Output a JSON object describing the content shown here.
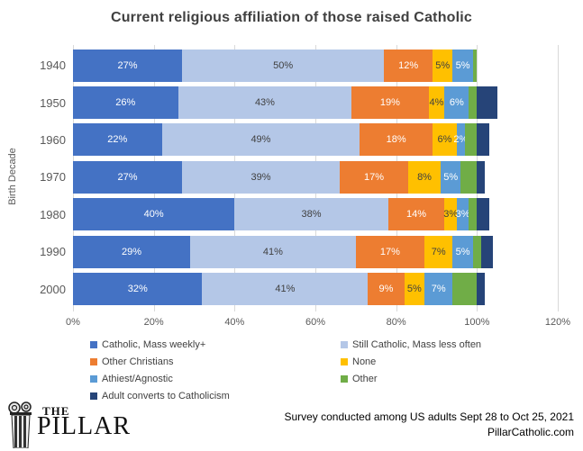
{
  "chart_data": {
    "type": "bar",
    "orientation": "horizontal-stacked",
    "title": "Current religious affiliation of those raised Catholic",
    "ylabel": "Birth Decade",
    "xlabel": "",
    "categories": [
      "1940",
      "1950",
      "1960",
      "1970",
      "1980",
      "1990",
      "2000"
    ],
    "series": [
      {
        "name": "Catholic, Mass weekly+",
        "color": "#4472C4",
        "label_color": "#FFFFFF",
        "show_labels": true,
        "values": [
          27,
          26,
          22,
          27,
          40,
          29,
          32
        ]
      },
      {
        "name": "Still Catholic, Mass less often",
        "color": "#B4C7E7",
        "label_color": "#404040",
        "show_labels": true,
        "values": [
          50,
          43,
          49,
          39,
          38,
          41,
          41
        ]
      },
      {
        "name": "Other Christians",
        "color": "#ED7D31",
        "label_color": "#FFFFFF",
        "show_labels": true,
        "values": [
          12,
          19,
          18,
          17,
          14,
          17,
          9
        ]
      },
      {
        "name": "None",
        "color": "#FFC000",
        "label_color": "#404040",
        "show_labels": true,
        "values": [
          5,
          4,
          6,
          8,
          3,
          7,
          5
        ]
      },
      {
        "name": "Athiest/Agnostic",
        "color": "#5B9BD5",
        "label_color": "#FFFFFF",
        "show_labels": true,
        "values": [
          5,
          6,
          2,
          5,
          3,
          5,
          7
        ]
      },
      {
        "name": "Other",
        "color": "#70AD47",
        "label_color": "#FFFFFF",
        "show_labels": false,
        "values": [
          1,
          2,
          3,
          4,
          2,
          2,
          6
        ]
      },
      {
        "name": "Adult converts to Catholicism",
        "color": "#264478",
        "label_color": "#FFFFFF",
        "show_labels": false,
        "values": [
          0,
          5,
          3,
          2,
          3,
          3,
          2
        ]
      }
    ],
    "x_ticks": [
      "0%",
      "20%",
      "40%",
      "60%",
      "80%",
      "100%",
      "120%"
    ],
    "xlim": [
      0,
      120
    ],
    "grid": true,
    "legend_position": "bottom",
    "gridline_color": "#D9D9D9",
    "axis_text_color": "#595959"
  },
  "footer": {
    "logo": {
      "the": "THE",
      "pillar": "PILLAR"
    },
    "note_line1": "Survey conducted among US adults Sept 28 to Oct 25, 2021",
    "note_line2": "PillarCatholic.com"
  }
}
